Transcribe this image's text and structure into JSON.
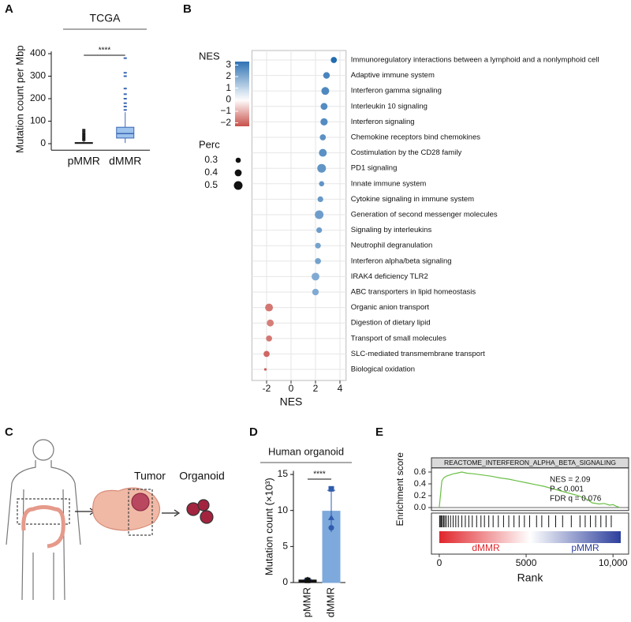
{
  "panel_labels": [
    "A",
    "B",
    "C",
    "D",
    "E"
  ],
  "illustration": {
    "labels": [
      "Tumor",
      "Organoid"
    ]
  },
  "chart_data": [
    {
      "type": "box",
      "title": "TCGA",
      "y_label": "Mutation count per Mbp",
      "significance": "****",
      "categories": [
        "pMMR",
        "dMMR"
      ],
      "boxes": [
        {
          "min": 0,
          "q1": 1,
          "median": 3,
          "q3": 5,
          "max": 10,
          "outliers": [
            15,
            20,
            25,
            30,
            36,
            42,
            48,
            55,
            62
          ]
        },
        {
          "min": 3,
          "q1": 25,
          "median": 45,
          "q3": 73,
          "max": 140,
          "outliers": [
            150,
            165,
            180,
            200,
            220,
            245,
            300,
            315,
            380
          ]
        }
      ],
      "colors": [
        "#1a1a1a",
        "#3a66b5"
      ],
      "fills": [
        "#ffffff",
        "#9ec3ec"
      ],
      "ylim": [
        -15,
        410
      ],
      "yticks": [
        0,
        100,
        200,
        300,
        400
      ]
    },
    {
      "type": "dot",
      "x_label": "NES",
      "color_label": "NES",
      "size_label": "Perc",
      "categories": [
        "Immunoregulatory interactions between a lymphoid and a nonlymphoid cell",
        "Adaptive immune system",
        "Interferon gamma signaling",
        "Interleukin 10 signaling",
        "Interferon signaling",
        "Chemokine receptors bind chemokines",
        "Costimulation by the CD28 family",
        "PD1 signaling",
        "Innate immune system",
        "Cytokine signaling in immune system",
        "Generation of second messenger molecules",
        "Signaling by interleukins",
        "Neutrophil degranulation",
        "Interferon alpha/beta signaling",
        "IRAK4 deficiency TLR2",
        "ABC transporters in lipid homeostasis",
        "Organic anion transport",
        "Digestion of dietary lipid",
        "Transport of small molecules",
        "SLC-mediated transmembrane transport",
        "Biological oxidation"
      ],
      "values": [
        3.5,
        2.9,
        2.8,
        2.7,
        2.7,
        2.6,
        2.6,
        2.5,
        2.5,
        2.4,
        2.3,
        2.3,
        2.2,
        2.2,
        2.0,
        2.0,
        -1.8,
        -1.7,
        -1.8,
        -2.0,
        -2.1
      ],
      "sizes": [
        0.35,
        0.38,
        0.45,
        0.4,
        0.42,
        0.35,
        0.45,
        0.5,
        0.3,
        0.33,
        0.5,
        0.33,
        0.33,
        0.35,
        0.45,
        0.38,
        0.45,
        0.4,
        0.35,
        0.35,
        0.15
      ],
      "colors": [
        "#c8504a",
        "#ffffff",
        "#2f73b4"
      ],
      "color_lim": [
        -2.3,
        3.3
      ],
      "color_ticks": [
        3,
        2,
        1,
        0,
        {
          "value": -1,
          "label": "−1"
        },
        {
          "value": -2,
          "label": "−2"
        }
      ],
      "size_ticks": [
        0.3,
        0.4,
        0.5
      ],
      "xlim": [
        -3.2,
        4.5
      ],
      "xticks": [
        -2,
        0,
        2,
        4
      ],
      "grid": true
    },
    {
      "type": "bar",
      "title": "Human organoid",
      "y_label": "Mutation count (×10³)",
      "significance": "****",
      "categories": [
        "pMMR",
        "dMMR"
      ],
      "values": [
        0.35,
        9.9
      ],
      "errors": [
        0.1,
        2.9
      ],
      "points": [
        [
          0.3,
          0.4,
          0.35
        ],
        [
          13,
          9,
          7.6
        ]
      ],
      "colors": [
        "#111111",
        "#7ea9dc"
      ],
      "point_color": "#2f5cae",
      "ylim": [
        0,
        15.5
      ],
      "yticks": [
        0,
        5,
        10,
        15
      ]
    },
    {
      "type": "line",
      "title": "REACTOME_INTERFERON_ALPHA_BETA_SIGNALING",
      "x_label": "Rank",
      "y_label": "Enrichment score",
      "annotations": [
        "NES = 2.09",
        "P < 0.001",
        "FDR q = 0.076"
      ],
      "x": [
        0,
        150,
        250,
        400,
        600,
        800,
        1000,
        1300,
        1600,
        2000,
        2500,
        3000,
        3500,
        4000,
        4500,
        5000,
        5500,
        6000,
        6500,
        7000,
        7500,
        8000,
        8500,
        8800,
        9200,
        9500,
        9800,
        10000,
        10200,
        10400
      ],
      "values": [
        0,
        0.45,
        0.5,
        0.53,
        0.55,
        0.57,
        0.58,
        0.6,
        0.58,
        0.57,
        0.55,
        0.53,
        0.5,
        0.48,
        0.45,
        0.42,
        0.39,
        0.36,
        0.32,
        0.28,
        0.24,
        0.2,
        0.14,
        0.08,
        0.06,
        0.07,
        0.04,
        0.05,
        0.02,
        0
      ],
      "hits": [
        20,
        60,
        120,
        180,
        250,
        320,
        400,
        520,
        650,
        800,
        950,
        1100,
        1300,
        1500,
        1700,
        1900,
        2150,
        2400,
        2600,
        2850,
        3100,
        3400,
        3700,
        4000,
        4300,
        4600,
        4900,
        5200,
        5600,
        5900,
        6300,
        6700,
        7100,
        7600,
        8100,
        8400,
        8700,
        9000,
        9300,
        9600,
        9900
      ],
      "ranking_labels": [
        "dMMR",
        "pMMR"
      ],
      "ranking_colors": [
        "#e0262b",
        "#ffffff",
        "#2c3f9c"
      ],
      "color": "#6abf45",
      "xlim": [
        -450,
        10900
      ],
      "xticks": [
        0,
        5000,
        {
          "value": 10000,
          "label": "10,000"
        }
      ],
      "ylim": [
        -0.05,
        0.67
      ],
      "yticks": [
        {
          "value": 0,
          "label": "0.0"
        },
        0.2,
        0.4,
        0.6
      ]
    }
  ]
}
